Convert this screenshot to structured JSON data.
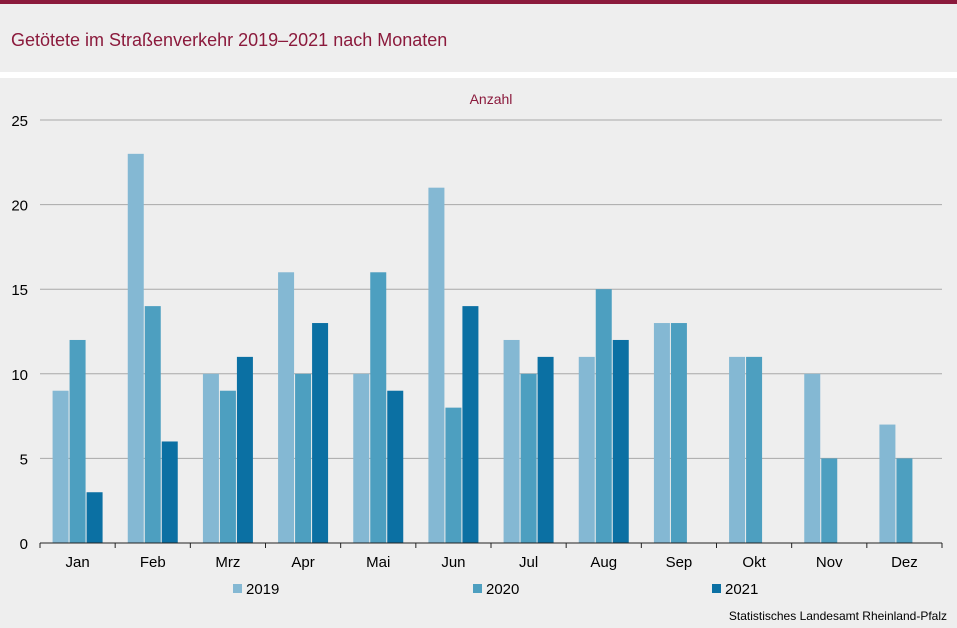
{
  "title": "Getötete im Straßenverkehr 2019–2021 nach Monaten",
  "source": "Statistisches Landesamt  Rheinland-Pfalz",
  "chart_data": {
    "type": "bar",
    "title": "Getötete im Straßenverkehr 2019–2021 nach Monaten",
    "ylabel": "Anzahl",
    "xlabel": "",
    "ylim": [
      0,
      25
    ],
    "yticks": [
      0,
      5,
      10,
      15,
      20,
      25
    ],
    "grid": true,
    "legend_position": "bottom",
    "categories": [
      "Jan",
      "Feb",
      "Mrz",
      "Apr",
      "Mai",
      "Jun",
      "Jul",
      "Aug",
      "Sep",
      "Okt",
      "Nov",
      "Dez"
    ],
    "series": [
      {
        "name": "2019",
        "color": "#84b8d3",
        "values": [
          9,
          23,
          10,
          16,
          10,
          21,
          12,
          11,
          13,
          11,
          10,
          7
        ]
      },
      {
        "name": "2020",
        "color": "#4d9fc0",
        "values": [
          12,
          14,
          9,
          10,
          16,
          8,
          10,
          15,
          13,
          11,
          5,
          5
        ]
      },
      {
        "name": "2021",
        "color": "#0b70a3",
        "values": [
          3,
          6,
          11,
          13,
          9,
          14,
          11,
          12,
          null,
          null,
          null,
          null
        ]
      }
    ]
  }
}
